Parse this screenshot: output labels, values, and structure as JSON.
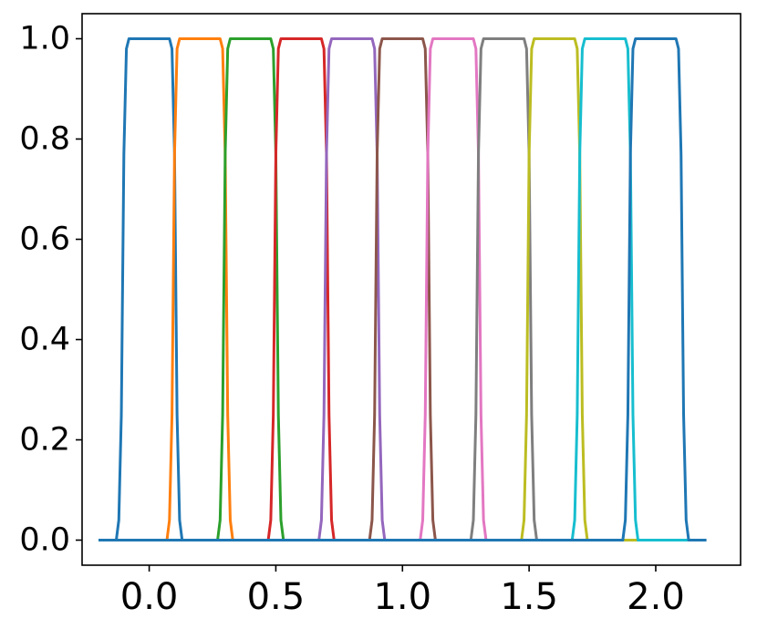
{
  "chart_data": {
    "type": "line",
    "title": "",
    "xlabel": "",
    "ylabel": "",
    "xlim": [
      -0.265,
      2.335
    ],
    "ylim": [
      -0.05,
      1.05
    ],
    "grid": false,
    "legend": "none",
    "x_ticks": [
      {
        "value": 0.0,
        "label": "0.0"
      },
      {
        "value": 0.5,
        "label": "0.5"
      },
      {
        "value": 1.0,
        "label": "1.0"
      },
      {
        "value": 1.5,
        "label": "1.5"
      },
      {
        "value": 2.0,
        "label": "2.0"
      }
    ],
    "y_ticks": [
      {
        "value": 0.0,
        "label": "0.0"
      },
      {
        "value": 0.2,
        "label": "0.2"
      },
      {
        "value": 0.4,
        "label": "0.4"
      },
      {
        "value": 0.6,
        "label": "0.6"
      },
      {
        "value": 0.8,
        "label": "0.8"
      },
      {
        "value": 1.0,
        "label": "1.0"
      }
    ],
    "series": [
      {
        "color": "#1f77b4",
        "points": [
          [
            -0.2,
            0
          ],
          [
            -0.13,
            0
          ],
          [
            -0.12,
            0.04
          ],
          [
            -0.11,
            0.25
          ],
          [
            -0.1,
            0.77
          ],
          [
            -0.09,
            0.98
          ],
          [
            -0.08,
            1
          ],
          [
            0.08,
            1
          ],
          [
            0.09,
            0.98
          ],
          [
            0.1,
            0.77
          ],
          [
            0.11,
            0.25
          ],
          [
            0.12,
            0.04
          ],
          [
            0.13,
            0
          ],
          [
            2.2,
            0
          ]
        ]
      },
      {
        "color": "#ff7f0e",
        "points": [
          [
            -0.2,
            0
          ],
          [
            0.07,
            0
          ],
          [
            0.08,
            0.04
          ],
          [
            0.09,
            0.25
          ],
          [
            0.1,
            0.77
          ],
          [
            0.11,
            0.98
          ],
          [
            0.12,
            1
          ],
          [
            0.28,
            1
          ],
          [
            0.29,
            0.98
          ],
          [
            0.3,
            0.77
          ],
          [
            0.31,
            0.25
          ],
          [
            0.32,
            0.04
          ],
          [
            0.33,
            0
          ],
          [
            2.2,
            0
          ]
        ]
      },
      {
        "color": "#2ca02c",
        "points": [
          [
            -0.2,
            0
          ],
          [
            0.27,
            0
          ],
          [
            0.28,
            0.04
          ],
          [
            0.29,
            0.25
          ],
          [
            0.3,
            0.77
          ],
          [
            0.31,
            0.98
          ],
          [
            0.32,
            1
          ],
          [
            0.48,
            1
          ],
          [
            0.49,
            0.98
          ],
          [
            0.5,
            0.77
          ],
          [
            0.51,
            0.25
          ],
          [
            0.52,
            0.04
          ],
          [
            0.53,
            0
          ],
          [
            2.2,
            0
          ]
        ]
      },
      {
        "color": "#d62728",
        "points": [
          [
            -0.2,
            0
          ],
          [
            0.47,
            0
          ],
          [
            0.48,
            0.04
          ],
          [
            0.49,
            0.25
          ],
          [
            0.5,
            0.77
          ],
          [
            0.51,
            0.98
          ],
          [
            0.52,
            1
          ],
          [
            0.68,
            1
          ],
          [
            0.69,
            0.98
          ],
          [
            0.7,
            0.77
          ],
          [
            0.71,
            0.25
          ],
          [
            0.72,
            0.04
          ],
          [
            0.73,
            0
          ],
          [
            2.2,
            0
          ]
        ]
      },
      {
        "color": "#9467bd",
        "points": [
          [
            -0.2,
            0
          ],
          [
            0.67,
            0
          ],
          [
            0.68,
            0.04
          ],
          [
            0.69,
            0.25
          ],
          [
            0.7,
            0.77
          ],
          [
            0.71,
            0.98
          ],
          [
            0.72,
            1
          ],
          [
            0.88,
            1
          ],
          [
            0.89,
            0.98
          ],
          [
            0.9,
            0.77
          ],
          [
            0.91,
            0.25
          ],
          [
            0.92,
            0.04
          ],
          [
            0.93,
            0
          ],
          [
            2.2,
            0
          ]
        ]
      },
      {
        "color": "#8c564b",
        "points": [
          [
            -0.2,
            0
          ],
          [
            0.87,
            0
          ],
          [
            0.88,
            0.04
          ],
          [
            0.89,
            0.25
          ],
          [
            0.9,
            0.77
          ],
          [
            0.91,
            0.98
          ],
          [
            0.92,
            1
          ],
          [
            1.08,
            1
          ],
          [
            1.09,
            0.98
          ],
          [
            1.1,
            0.77
          ],
          [
            1.11,
            0.25
          ],
          [
            1.12,
            0.04
          ],
          [
            1.13,
            0
          ],
          [
            2.2,
            0
          ]
        ]
      },
      {
        "color": "#e377c2",
        "points": [
          [
            -0.2,
            0
          ],
          [
            1.07,
            0
          ],
          [
            1.08,
            0.04
          ],
          [
            1.09,
            0.25
          ],
          [
            1.1,
            0.77
          ],
          [
            1.11,
            0.98
          ],
          [
            1.12,
            1
          ],
          [
            1.28,
            1
          ],
          [
            1.29,
            0.98
          ],
          [
            1.3,
            0.77
          ],
          [
            1.31,
            0.25
          ],
          [
            1.32,
            0.04
          ],
          [
            1.33,
            0
          ],
          [
            2.2,
            0
          ]
        ]
      },
      {
        "color": "#7f7f7f",
        "points": [
          [
            -0.2,
            0
          ],
          [
            1.27,
            0
          ],
          [
            1.28,
            0.04
          ],
          [
            1.29,
            0.25
          ],
          [
            1.3,
            0.77
          ],
          [
            1.31,
            0.98
          ],
          [
            1.32,
            1
          ],
          [
            1.48,
            1
          ],
          [
            1.49,
            0.98
          ],
          [
            1.5,
            0.77
          ],
          [
            1.51,
            0.25
          ],
          [
            1.52,
            0.04
          ],
          [
            1.53,
            0
          ],
          [
            2.2,
            0
          ]
        ]
      },
      {
        "color": "#bcbd22",
        "points": [
          [
            -0.2,
            0
          ],
          [
            1.47,
            0
          ],
          [
            1.48,
            0.04
          ],
          [
            1.49,
            0.25
          ],
          [
            1.5,
            0.77
          ],
          [
            1.51,
            0.98
          ],
          [
            1.52,
            1
          ],
          [
            1.68,
            1
          ],
          [
            1.69,
            0.98
          ],
          [
            1.7,
            0.77
          ],
          [
            1.71,
            0.25
          ],
          [
            1.72,
            0.04
          ],
          [
            1.73,
            0
          ],
          [
            2.2,
            0
          ]
        ]
      },
      {
        "color": "#17becf",
        "points": [
          [
            -0.2,
            0
          ],
          [
            1.67,
            0
          ],
          [
            1.68,
            0.04
          ],
          [
            1.69,
            0.25
          ],
          [
            1.7,
            0.77
          ],
          [
            1.71,
            0.98
          ],
          [
            1.72,
            1
          ],
          [
            1.88,
            1
          ],
          [
            1.89,
            0.98
          ],
          [
            1.9,
            0.77
          ],
          [
            1.91,
            0.25
          ],
          [
            1.92,
            0.04
          ],
          [
            1.93,
            0
          ],
          [
            2.2,
            0
          ]
        ]
      },
      {
        "color": "#1f77b4",
        "points": [
          [
            -0.2,
            0
          ],
          [
            1.87,
            0
          ],
          [
            1.88,
            0.04
          ],
          [
            1.89,
            0.25
          ],
          [
            1.9,
            0.77
          ],
          [
            1.91,
            0.98
          ],
          [
            1.92,
            1
          ],
          [
            2.08,
            1
          ],
          [
            2.09,
            0.98
          ],
          [
            2.1,
            0.77
          ],
          [
            2.11,
            0.25
          ],
          [
            2.12,
            0.04
          ],
          [
            2.13,
            0
          ],
          [
            2.2,
            0
          ]
        ]
      }
    ]
  }
}
